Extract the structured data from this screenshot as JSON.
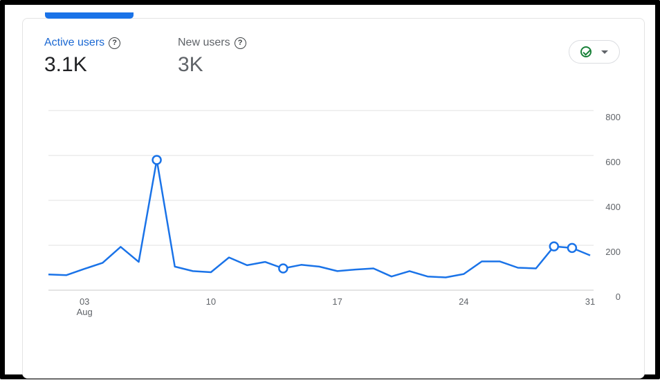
{
  "metrics": {
    "active": {
      "label": "Active users",
      "value": "3.1K",
      "help_icon": "?"
    },
    "new": {
      "label": "New users",
      "value": "3K",
      "help_icon": "?"
    }
  },
  "compare_button": {
    "icons": [
      "check-circle-icon",
      "caret-down-icon"
    ]
  },
  "colors": {
    "accent": "#1a73e8",
    "check": "#188038",
    "grid": "#e0e0e0"
  },
  "chart_data": {
    "type": "line",
    "series": [
      {
        "values": [
          70,
          67,
          95,
          122,
          193,
          126,
          580,
          105,
          85,
          80,
          146,
          111,
          126,
          97,
          113,
          105,
          85,
          92,
          97,
          61,
          85,
          61,
          57,
          72,
          128,
          128,
          100,
          97,
          195,
          188,
          155
        ],
        "markers": [
          6,
          13,
          28,
          29
        ]
      }
    ],
    "x_ticks": [
      {
        "index": 2,
        "label": "03",
        "sublabel": "Aug"
      },
      {
        "index": 9,
        "label": "10"
      },
      {
        "index": 16,
        "label": "17"
      },
      {
        "index": 23,
        "label": "24"
      },
      {
        "index": 30,
        "label": "31"
      }
    ],
    "y_ticks": [
      {
        "value": 0,
        "label": "0"
      },
      {
        "value": 200,
        "label": "200"
      },
      {
        "value": 400,
        "label": "400"
      },
      {
        "value": 600,
        "label": "600"
      },
      {
        "value": 800,
        "label": "800"
      }
    ],
    "ylim": [
      0,
      800
    ],
    "grid": true
  }
}
